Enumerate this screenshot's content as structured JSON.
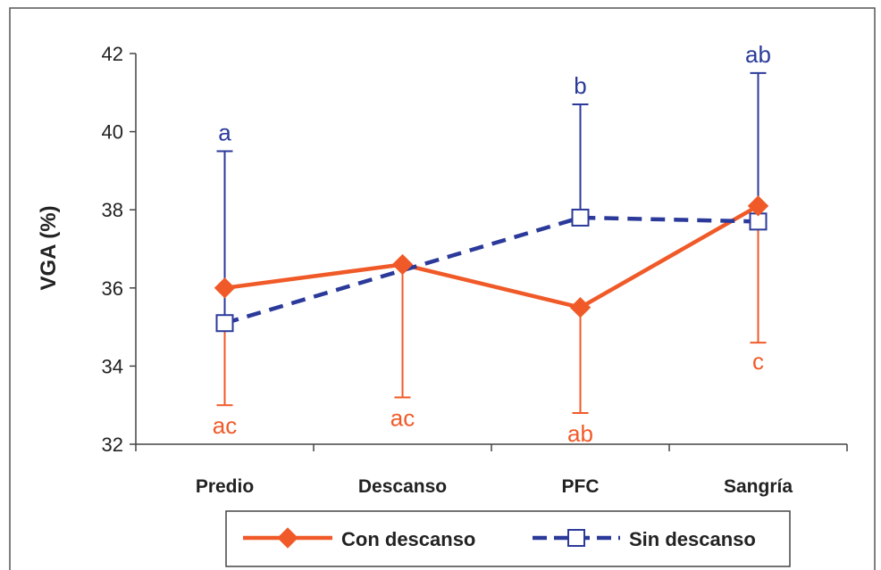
{
  "chart_data": {
    "type": "line",
    "ylabel": "VGA (%)",
    "ylim": [
      32,
      42
    ],
    "yticks": [
      32,
      34,
      36,
      38,
      40,
      42
    ],
    "categories": [
      "Predio",
      "Descanso",
      "PFC",
      "Sangría"
    ],
    "grid": false,
    "legend_position": "bottom",
    "series": [
      {
        "name": "Con descanso",
        "color": "#f05a28",
        "line_style": "solid",
        "marker": "diamond",
        "values": [
          36.0,
          36.6,
          35.5,
          38.1
        ],
        "error_low": [
          33.0,
          33.2,
          32.8,
          34.6
        ],
        "error_high": [
          null,
          null,
          null,
          null
        ],
        "annotations": [
          "ac",
          "ac",
          "ab",
          "c"
        ]
      },
      {
        "name": "Sin descanso",
        "color": "#2b3a9a",
        "line_style": "dashed",
        "marker": "square-open",
        "values": [
          35.1,
          null,
          37.8,
          37.7
        ],
        "error_low": [
          null,
          null,
          null,
          null
        ],
        "error_high": [
          39.5,
          null,
          40.7,
          41.5
        ],
        "annotations": [
          "a",
          "",
          "b",
          "ab"
        ]
      }
    ]
  }
}
